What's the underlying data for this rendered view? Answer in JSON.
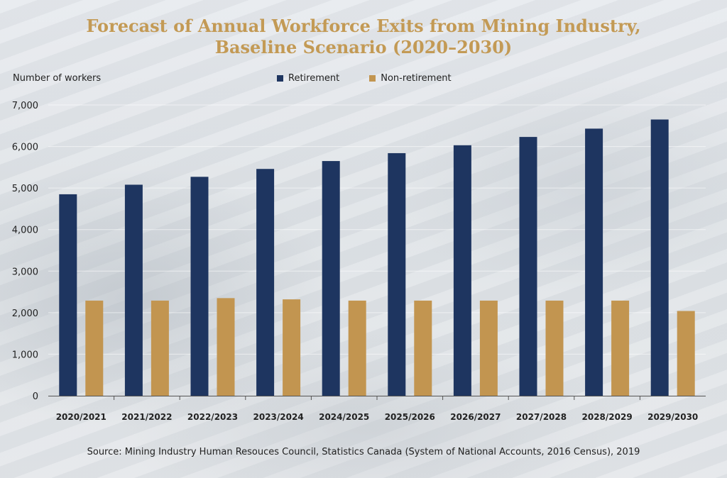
{
  "chart_data": {
    "type": "bar",
    "title_lines": [
      "Forecast of Annual Workforce Exits from Mining Industry,",
      "Baseline Scenario (2020–2030)"
    ],
    "ylabel": "Number of workers",
    "xlabel": "",
    "categories": [
      "2020/2021",
      "2021/2022",
      "2022/2023",
      "2023/2024",
      "2024/2025",
      "2025/2026",
      "2026/2027",
      "2027/2028",
      "2028/2029",
      "2029/2030"
    ],
    "series": [
      {
        "name": "Retirement",
        "color": "#1e3560",
        "values": [
          4850,
          5080,
          5270,
          5460,
          5650,
          5840,
          6030,
          6230,
          6430,
          6650
        ]
      },
      {
        "name": "Non-retirement",
        "color": "#c29550",
        "values": [
          2290,
          2290,
          2350,
          2320,
          2290,
          2290,
          2290,
          2290,
          2290,
          2040
        ]
      }
    ],
    "ylim": [
      0,
      7000
    ],
    "yticks": [
      0,
      1000,
      2000,
      3000,
      4000,
      5000,
      6000,
      7000
    ],
    "ytick_labels": [
      "0",
      "1,000",
      "2,000",
      "3,000",
      "4,000",
      "5,000",
      "6,000",
      "7,000"
    ],
    "grid": true,
    "legend_position": "top-center"
  },
  "source": "Source: Mining Industry Human Resouces Council, Statistics Canada (System of National Accounts, 2016 Census), 2019"
}
